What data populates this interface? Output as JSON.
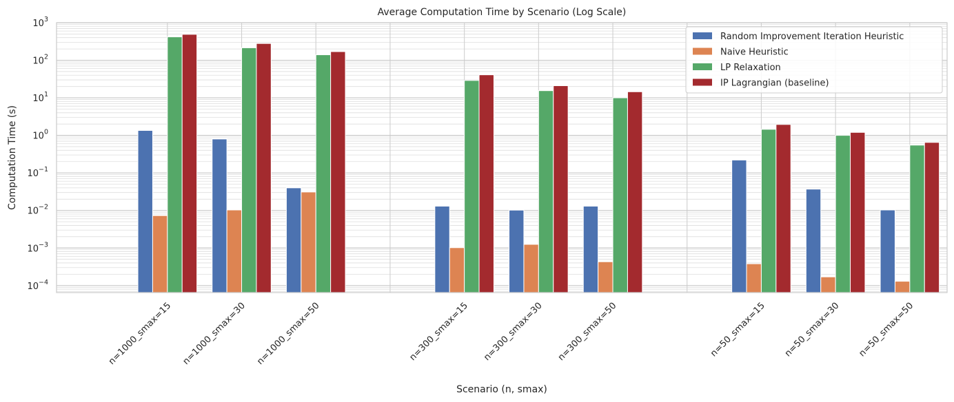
{
  "chart_data": {
    "type": "bar",
    "title": "Average Computation Time by Scenario (Log Scale)",
    "xlabel": "Scenario (n, smax)",
    "ylabel": "Computation Time (s)",
    "yscale": "log",
    "ylim": [
      6.5e-05,
      1000
    ],
    "grid": true,
    "legend_position": "top-right",
    "categories": [
      "n=1000_smax=15",
      "n=1000_smax=30",
      "n=1000_smax=50",
      "n=300_smax=15",
      "n=300_smax=30",
      "n=300_smax=50",
      "n=50_smax=15",
      "n=50_smax=30",
      "n=50_smax=50"
    ],
    "y_ticks": [
      {
        "value": 0.0001,
        "base": "10",
        "exp": "−4"
      },
      {
        "value": 0.001,
        "base": "10",
        "exp": "−3"
      },
      {
        "value": 0.01,
        "base": "10",
        "exp": "−2"
      },
      {
        "value": 0.1,
        "base": "10",
        "exp": "−1"
      },
      {
        "value": 1,
        "base": "10",
        "exp": "0"
      },
      {
        "value": 10,
        "base": "10",
        "exp": "1"
      },
      {
        "value": 100,
        "base": "10",
        "exp": "2"
      },
      {
        "value": 1000,
        "base": "10",
        "exp": "3"
      }
    ],
    "series": [
      {
        "name": "Random Improvement Iteration Heuristic",
        "color": "#4c72b0",
        "values": [
          1.35,
          0.8,
          0.04,
          0.013,
          0.0102,
          0.013,
          0.22,
          0.037,
          0.0103
        ]
      },
      {
        "name": "Naive Heuristic",
        "color": "#dd8452",
        "values": [
          0.0073,
          0.0103,
          0.031,
          0.00102,
          0.00125,
          0.00043,
          0.00038,
          0.00017,
          0.00013
        ]
      },
      {
        "name": "LP Relaxation",
        "color": "#55a868",
        "values": [
          420,
          215,
          140,
          29,
          15.5,
          10,
          1.45,
          1.0,
          0.55
        ]
      },
      {
        "name": "IP Lagrangian (baseline)",
        "color": "#a32a2e",
        "values": [
          490,
          280,
          170,
          41,
          21,
          14.5,
          1.95,
          1.2,
          0.65
        ]
      }
    ]
  }
}
